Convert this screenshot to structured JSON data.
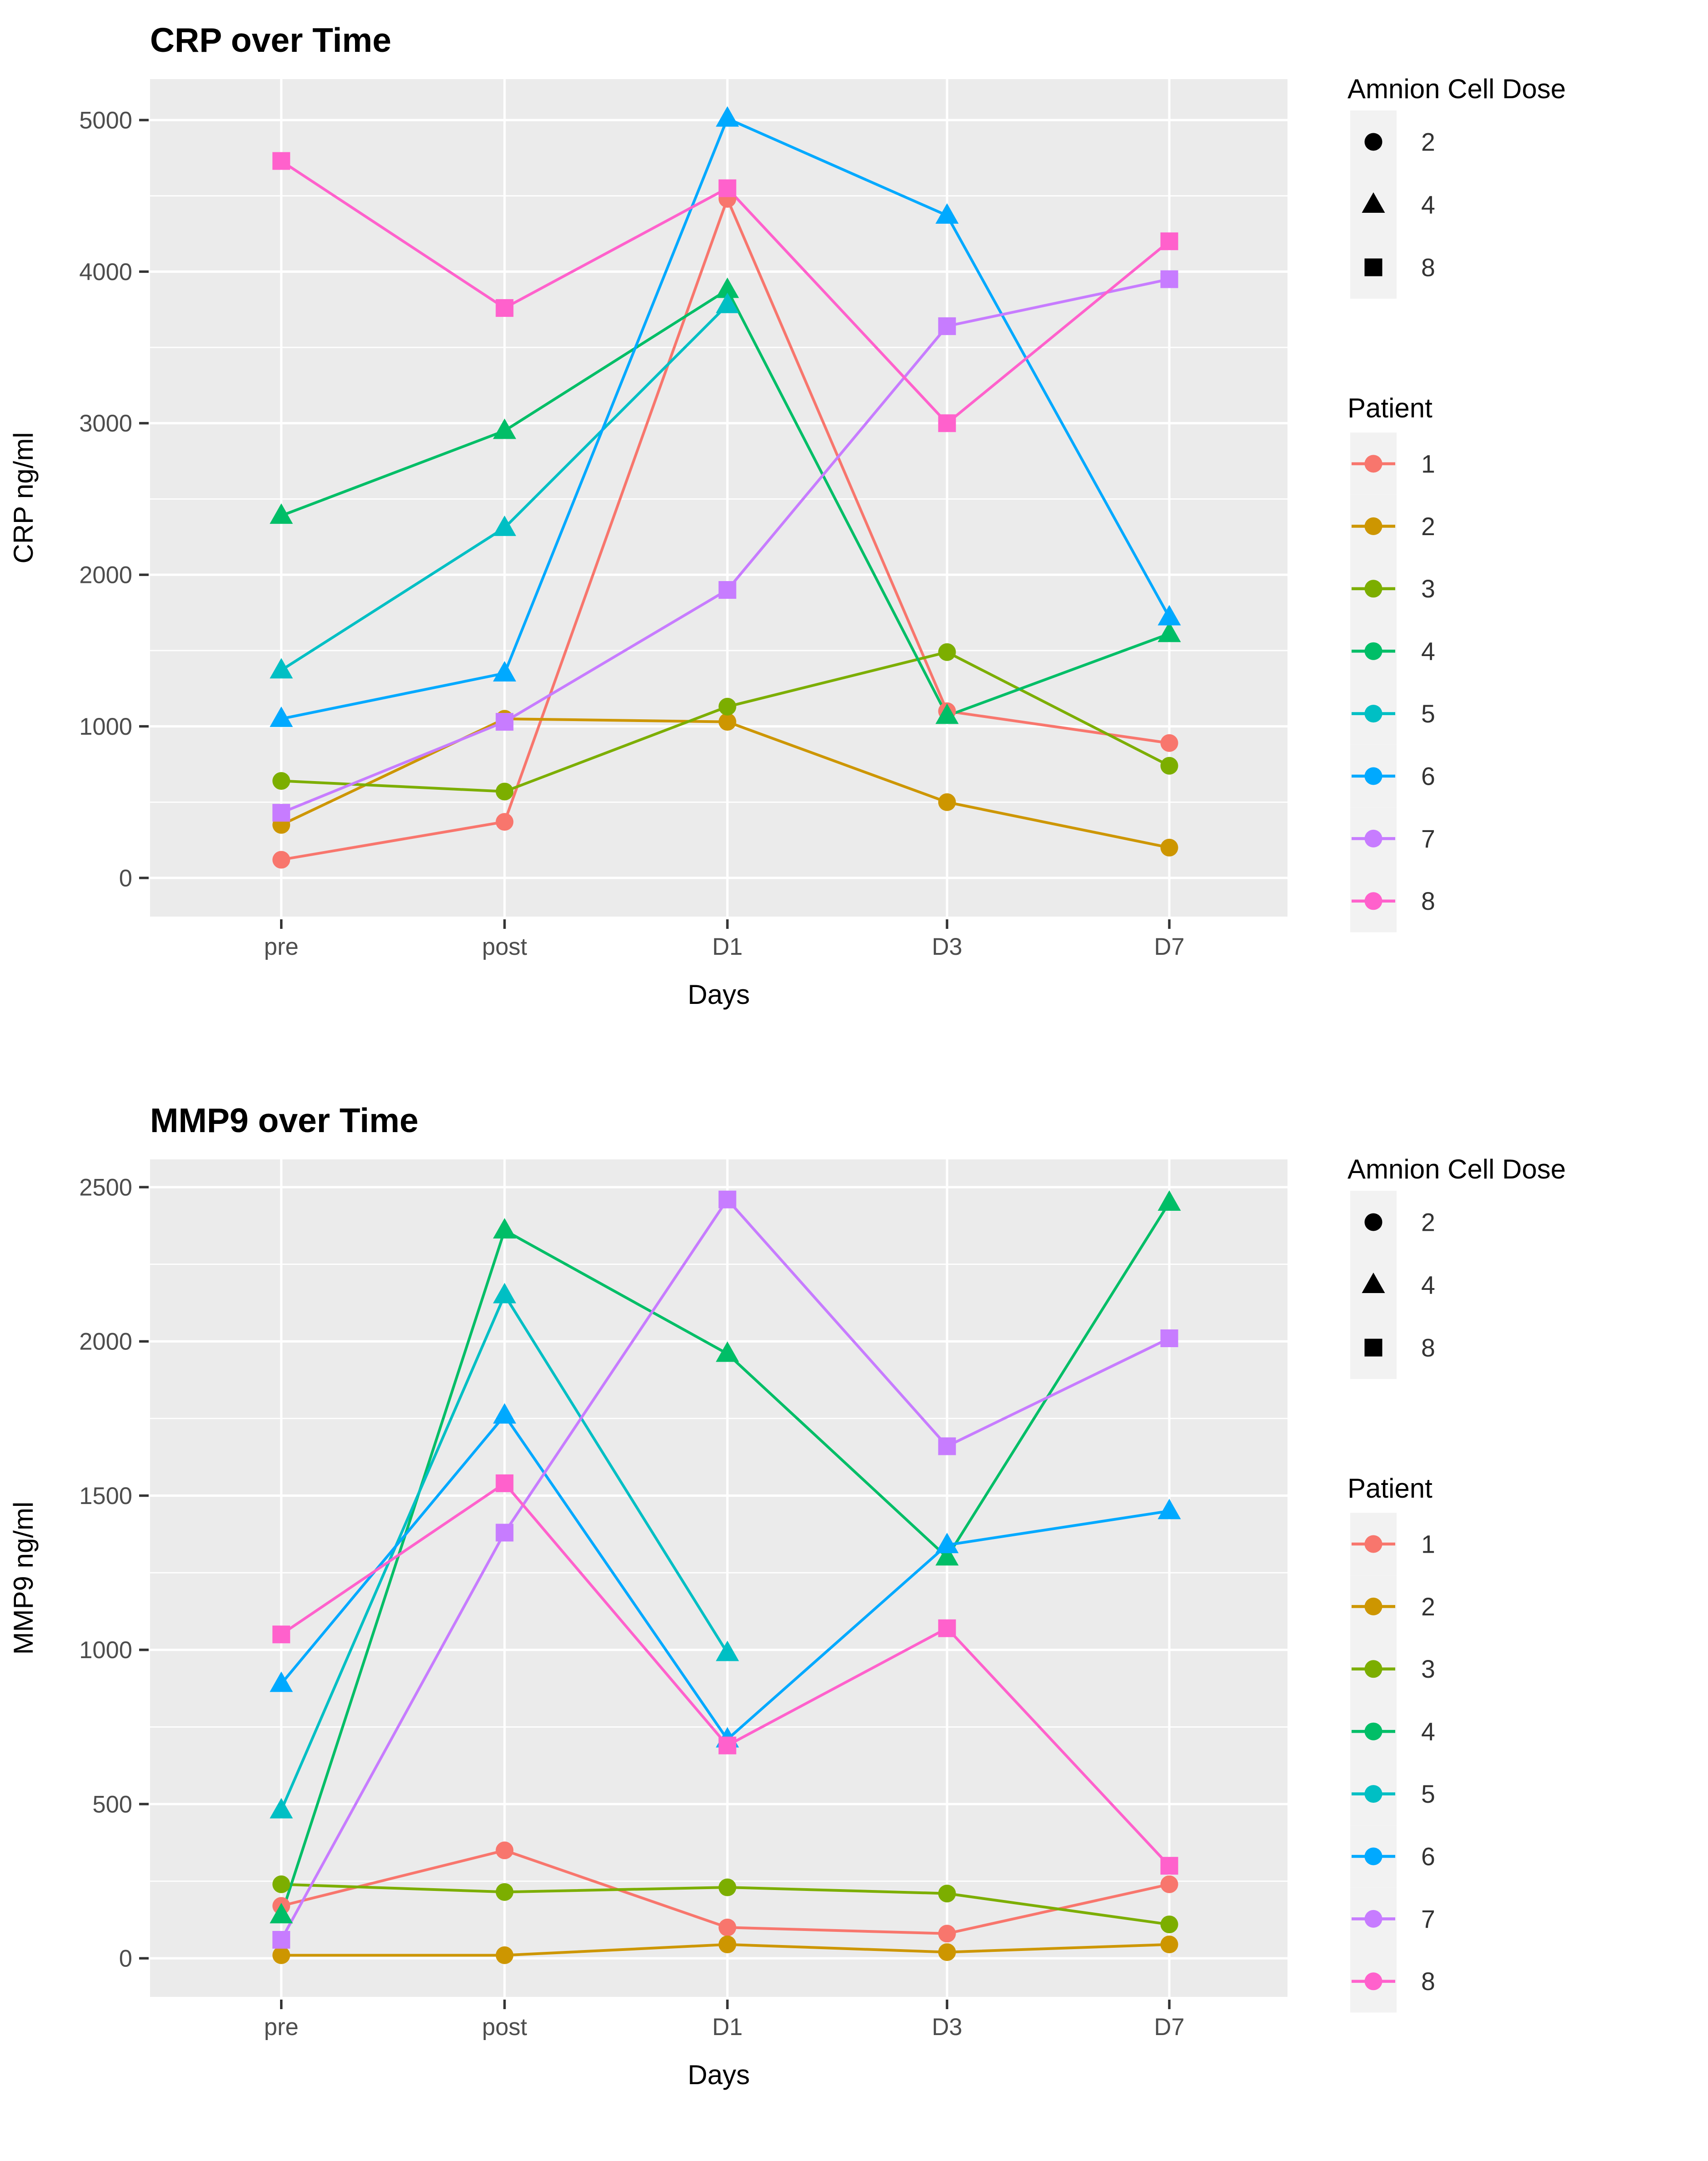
{
  "chart_data": [
    {
      "type": "line",
      "title": "CRP over Time",
      "xlabel": "Days",
      "ylabel": "CRP ng/ml",
      "categories": [
        "pre",
        "post",
        "D1",
        "D3",
        "D7"
      ],
      "yticks": [
        0,
        1000,
        2000,
        3000,
        4000,
        5000
      ],
      "ylim": [
        -255,
        5270
      ],
      "grid": "on",
      "legend_position": "right",
      "series": [
        {
          "name": "1",
          "patient": 1,
          "dose": 2,
          "shape": "circle",
          "color": "#F8766D",
          "values": [
            120,
            370,
            4480,
            1100,
            890
          ]
        },
        {
          "name": "2",
          "patient": 2,
          "dose": 2,
          "shape": "circle",
          "color": "#CD9600",
          "values": [
            350,
            1050,
            1030,
            500,
            200
          ]
        },
        {
          "name": "3",
          "patient": 3,
          "dose": 2,
          "shape": "circle",
          "color": "#7CAE00",
          "values": [
            640,
            570,
            1130,
            1490,
            740
          ]
        },
        {
          "name": "4",
          "patient": 4,
          "dose": 4,
          "shape": "triangle",
          "color": "#00BE67",
          "values": [
            2390,
            2950,
            3880,
            1070,
            1610
          ]
        },
        {
          "name": "5",
          "patient": 5,
          "dose": 4,
          "shape": "triangle",
          "color": "#00BFC4",
          "values": [
            1370,
            2310,
            3780,
            null,
            null
          ]
        },
        {
          "name": "6",
          "patient": 6,
          "dose": 4,
          "shape": "triangle",
          "color": "#00A9FF",
          "values": [
            1050,
            1350,
            5010,
            4370,
            1720
          ]
        },
        {
          "name": "7",
          "patient": 7,
          "dose": 8,
          "shape": "square",
          "color": "#C77CFF",
          "values": [
            430,
            1030,
            1900,
            3640,
            3950
          ]
        },
        {
          "name": "8",
          "patient": 8,
          "dose": 8,
          "shape": "square",
          "color": "#FF61CC",
          "values": [
            4730,
            3760,
            4550,
            3000,
            4200
          ]
        }
      ],
      "legend": {
        "dose_title": "Amnion Cell Dose",
        "dose_entries": [
          {
            "shape": "circle",
            "label": "2"
          },
          {
            "shape": "triangle",
            "label": "4"
          },
          {
            "shape": "square",
            "label": "8"
          }
        ],
        "patient_title": "Patient",
        "patient_entries": [
          {
            "label": "1",
            "color": "#F8766D"
          },
          {
            "label": "2",
            "color": "#CD9600"
          },
          {
            "label": "3",
            "color": "#7CAE00"
          },
          {
            "label": "4",
            "color": "#00BE67"
          },
          {
            "label": "5",
            "color": "#00BFC4"
          },
          {
            "label": "6",
            "color": "#00A9FF"
          },
          {
            "label": "7",
            "color": "#C77CFF"
          },
          {
            "label": "8",
            "color": "#FF61CC"
          }
        ]
      }
    },
    {
      "type": "line",
      "title": "MMP9 over Time",
      "xlabel": "Days",
      "ylabel": "MMP9 ng/ml",
      "categories": [
        "pre",
        "post",
        "D1",
        "D3",
        "D7"
      ],
      "yticks": [
        0,
        500,
        1000,
        1500,
        2000,
        2500
      ],
      "ylim": [
        -125,
        2590
      ],
      "grid": "on",
      "legend_position": "right",
      "series": [
        {
          "name": "1",
          "patient": 1,
          "dose": 2,
          "shape": "circle",
          "color": "#F8766D",
          "values": [
            170,
            350,
            100,
            80,
            240
          ]
        },
        {
          "name": "2",
          "patient": 2,
          "dose": 2,
          "shape": "circle",
          "color": "#CD9600",
          "values": [
            10,
            10,
            45,
            20,
            45
          ]
        },
        {
          "name": "3",
          "patient": 3,
          "dose": 2,
          "shape": "circle",
          "color": "#7CAE00",
          "values": [
            240,
            215,
            230,
            210,
            110
          ]
        },
        {
          "name": "4",
          "patient": 4,
          "dose": 4,
          "shape": "triangle",
          "color": "#00BE67",
          "values": [
            140,
            2360,
            1960,
            1300,
            2450
          ]
        },
        {
          "name": "5",
          "patient": 5,
          "dose": 4,
          "shape": "triangle",
          "color": "#00BFC4",
          "values": [
            480,
            2150,
            990,
            null,
            null
          ]
        },
        {
          "name": "6",
          "patient": 6,
          "dose": 4,
          "shape": "triangle",
          "color": "#00A9FF",
          "values": [
            890,
            1760,
            710,
            1340,
            1450
          ]
        },
        {
          "name": "7",
          "patient": 7,
          "dose": 8,
          "shape": "square",
          "color": "#C77CFF",
          "values": [
            60,
            1380,
            2460,
            1660,
            2010
          ]
        },
        {
          "name": "8",
          "patient": 8,
          "dose": 8,
          "shape": "square",
          "color": "#FF61CC",
          "values": [
            1050,
            1540,
            690,
            1070,
            300
          ]
        }
      ],
      "legend": {
        "dose_title": "Amnion Cell Dose",
        "dose_entries": [
          {
            "shape": "circle",
            "label": "2"
          },
          {
            "shape": "triangle",
            "label": "4"
          },
          {
            "shape": "square",
            "label": "8"
          }
        ],
        "patient_title": "Patient",
        "patient_entries": [
          {
            "label": "1",
            "color": "#F8766D"
          },
          {
            "label": "2",
            "color": "#CD9600"
          },
          {
            "label": "3",
            "color": "#7CAE00"
          },
          {
            "label": "4",
            "color": "#00BE67"
          },
          {
            "label": "5",
            "color": "#00BFC4"
          },
          {
            "label": "6",
            "color": "#00A9FF"
          },
          {
            "label": "7",
            "color": "#C77CFF"
          },
          {
            "label": "8",
            "color": "#FF61CC"
          }
        ]
      }
    }
  ],
  "colors": {
    "panel_background": "#EBEBEB",
    "gridline": "#FFFFFF",
    "tick_label": "#4D4D4D",
    "tick_mark": "#333333",
    "legend_key_background": "#F2F2F2",
    "legend_label": "#333333",
    "title": "#000000"
  }
}
